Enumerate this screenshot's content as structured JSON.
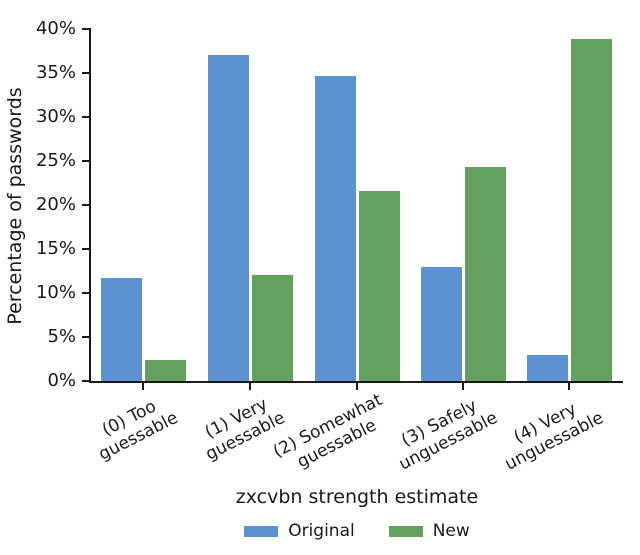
{
  "chart_data": {
    "type": "bar",
    "title": "",
    "xlabel": "zxcvbn strength estimate",
    "ylabel": "Percentage of passwords",
    "categories": [
      "(0) Too\nguessable",
      "(1) Very\nguessable",
      "(2) Somewhat\nguessable",
      "(3) Safely\nunguessable",
      "(4) Very\nunguessable"
    ],
    "series": [
      {
        "name": "Original",
        "color": "#5C92D1",
        "values": [
          11.7,
          37.1,
          34.7,
          12.9,
          2.9
        ]
      },
      {
        "name": "New",
        "color": "#64A05E",
        "values": [
          2.4,
          12.1,
          21.6,
          24.3,
          38.9
        ]
      }
    ],
    "ylim": [
      0,
      40
    ],
    "yticks": [
      {
        "value": 0,
        "label": "0%"
      },
      {
        "value": 5,
        "label": "5%"
      },
      {
        "value": 10,
        "label": "10%"
      },
      {
        "value": 15,
        "label": "15%"
      },
      {
        "value": 20,
        "label": "20%"
      },
      {
        "value": 25,
        "label": "25%"
      },
      {
        "value": 30,
        "label": "30%"
      },
      {
        "value": 35,
        "label": "35%"
      },
      {
        "value": 40,
        "label": "40%"
      }
    ],
    "grid": false,
    "legend_position": "bottom-center"
  }
}
